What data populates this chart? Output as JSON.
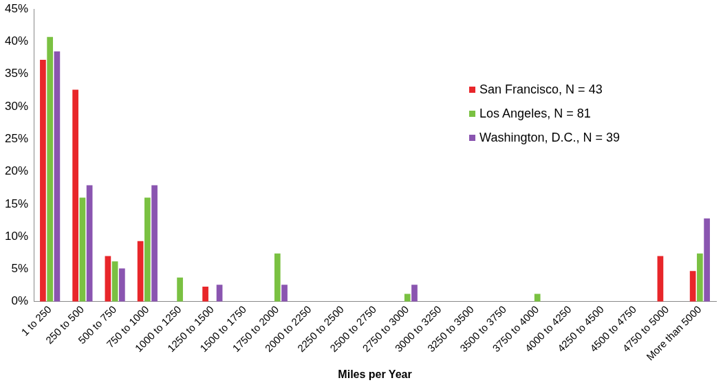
{
  "chart_data": {
    "type": "bar",
    "xlabel": "Miles per Year",
    "categories": [
      "1 to 250",
      "250 to 500",
      "500 to 750",
      "750 to 1000",
      "1000 to 1250",
      "1250 to 1500",
      "1500 to 1750",
      "1750 to 2000",
      "2000 to 2250",
      "2250 to 2500",
      "2500 to 2750",
      "2750 to 3000",
      "3000 to 3250",
      "3250 to 3500",
      "3500 to 3750",
      "3750 to 4000",
      "4000 to 4250",
      "4250 to 4500",
      "4500 to 4750",
      "4750 to 5000",
      "More than 5000"
    ],
    "series": [
      {
        "name": "San Francisco, N = 43",
        "color": "#e8262a",
        "values": [
          37.2,
          32.6,
          7.0,
          9.3,
          0,
          2.3,
          0,
          0,
          0,
          0,
          0,
          0,
          0,
          0,
          0,
          0,
          0,
          0,
          0,
          7.0,
          4.7
        ]
      },
      {
        "name": "Los Angeles, N = 81",
        "color": "#7ac142",
        "values": [
          40.7,
          16.0,
          6.2,
          16.0,
          3.7,
          0,
          0,
          7.4,
          0,
          0,
          0,
          1.2,
          0,
          0,
          0,
          1.2,
          0,
          0,
          0,
          0,
          7.4
        ]
      },
      {
        "name": "Washington, D.C., N = 39",
        "color": "#8a55b0",
        "values": [
          38.5,
          17.9,
          5.1,
          17.9,
          0,
          2.6,
          0,
          2.6,
          0,
          0,
          0,
          2.6,
          0,
          0,
          0,
          0,
          0,
          0,
          0,
          0,
          12.8
        ]
      }
    ],
    "ylim": [
      0,
      45
    ],
    "yticks": [
      {
        "value": 0,
        "label": "0%"
      },
      {
        "value": 5,
        "label": "5%"
      },
      {
        "value": 10,
        "label": "10%"
      },
      {
        "value": 15,
        "label": "15%"
      },
      {
        "value": 20,
        "label": "20%"
      },
      {
        "value": 25,
        "label": "25%"
      },
      {
        "value": 30,
        "label": "30%"
      },
      {
        "value": 35,
        "label": "35%"
      },
      {
        "value": 40,
        "label": "40%"
      },
      {
        "value": 45,
        "label": "45%"
      }
    ],
    "grid": false,
    "legend": "right"
  }
}
